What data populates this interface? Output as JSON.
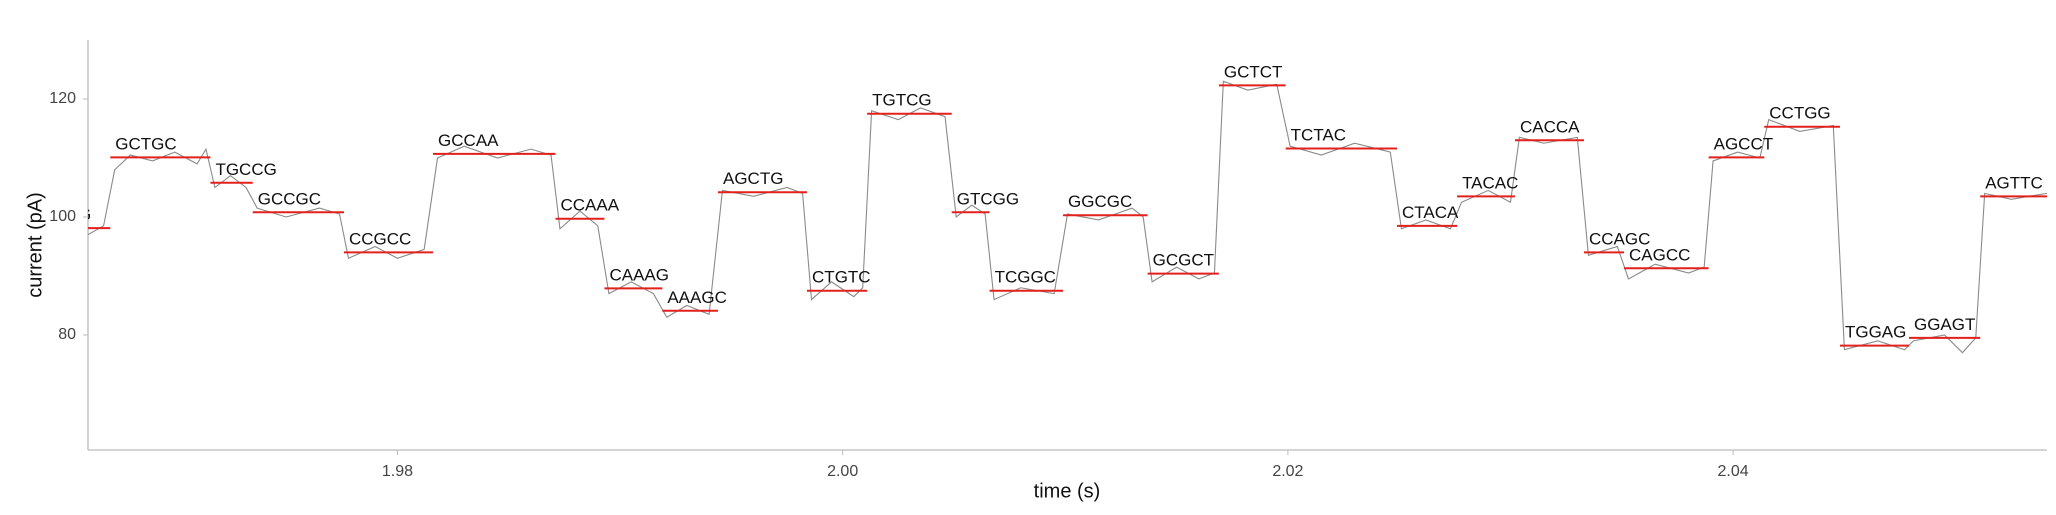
{
  "chart_data": {
    "type": "line",
    "xlabel": "time (s)",
    "ylabel": "current (pA)",
    "xlim": [
      1.9661,
      2.0541
    ],
    "ylim": [
      60.5,
      130
    ],
    "xticks": [
      1.98,
      {
        "value": 2,
        "label": "2.00"
      },
      2.02,
      {
        "value": 2.04,
        "label": "2.04"
      }
    ],
    "yticks": [
      80,
      100,
      120
    ],
    "series": [
      {
        "color": "#8a8a8a",
        "x": [
          1.9661,
          1.9668,
          1.9673,
          1.968,
          1.969,
          1.97,
          1.971,
          1.9714,
          1.9718,
          1.9725,
          1.9732,
          1.9737,
          1.975,
          1.9765,
          1.9774,
          1.9778,
          1.979,
          1.98,
          1.9812,
          1.9818,
          1.983,
          1.9845,
          1.986,
          1.9869,
          1.9873,
          1.9882,
          1.989,
          1.9895,
          1.9905,
          1.9915,
          1.9921,
          1.993,
          1.994,
          1.9946,
          1.996,
          1.9975,
          1.9982,
          1.9986,
          1.9995,
          2.0005,
          2.0009,
          2.0013,
          2.0025,
          2.0035,
          2.0046,
          2.0051,
          2.0058,
          2.0064,
          2.0068,
          2.008,
          2.0095,
          2.0101,
          2.0115,
          2.013,
          2.0135,
          2.0139,
          2.015,
          2.016,
          2.0167,
          2.0171,
          2.0182,
          2.0195,
          2.0201,
          2.0215,
          2.023,
          2.0246,
          2.0251,
          2.0262,
          2.0273,
          2.0278,
          2.029,
          2.03,
          2.0304,
          2.0315,
          2.033,
          2.0335,
          2.0348,
          2.0353,
          2.0365,
          2.038,
          2.0387,
          2.0391,
          2.0402,
          2.0412,
          2.0416,
          2.043,
          2.0445,
          2.045,
          2.0465,
          2.0477,
          2.0481,
          2.0495,
          2.0503,
          2.0509,
          2.0513,
          2.0525,
          2.0541
        ],
        "values": [
          97,
          98.5,
          108,
          110.5,
          109.5,
          111,
          109,
          111.5,
          105,
          107,
          105,
          101.5,
          100,
          101.5,
          100.5,
          93,
          95,
          93,
          94.5,
          110,
          112,
          110,
          111.5,
          110.5,
          98,
          101,
          98.5,
          87,
          89,
          87,
          83,
          85,
          83.5,
          104.5,
          103.5,
          105,
          104,
          86,
          89,
          86.5,
          88,
          118,
          116.5,
          118.5,
          117,
          100,
          102,
          100.5,
          86,
          88,
          87,
          100.5,
          99.5,
          101.5,
          100,
          89,
          91.5,
          89.5,
          90.5,
          123,
          121.5,
          122.5,
          112,
          110.5,
          112.5,
          111,
          98,
          99.5,
          98,
          102.5,
          104.5,
          102.5,
          113.5,
          112.5,
          113.5,
          93.5,
          95,
          89.5,
          92,
          90.5,
          91.5,
          109.5,
          111,
          110,
          116.5,
          114.5,
          115.5,
          77.5,
          79,
          77.5,
          79,
          80,
          77,
          79.5,
          104,
          103,
          104
        ]
      }
    ],
    "segment_color": "#e3201b",
    "segments": [
      {
        "label": "G",
        "start": 1.9661,
        "end": 1.9671,
        "level": 98.1
      },
      {
        "label": "GCTGC",
        "start": 1.9671,
        "end": 1.9716,
        "level": 110.1
      },
      {
        "label": "TGCCG",
        "start": 1.9716,
        "end": 1.9735,
        "level": 105.8
      },
      {
        "label": "GCCGC",
        "start": 1.9735,
        "end": 1.9776,
        "level": 100.8
      },
      {
        "label": "CCGCC",
        "start": 1.9776,
        "end": 1.9816,
        "level": 94
      },
      {
        "label": "GCCAA",
        "start": 1.9816,
        "end": 1.9871,
        "level": 110.7
      },
      {
        "label": "CCAAA",
        "start": 1.9871,
        "end": 1.9893,
        "level": 99.7
      },
      {
        "label": "CAAAG",
        "start": 1.9893,
        "end": 1.9919,
        "level": 87.9
      },
      {
        "label": "AAAGC",
        "start": 1.9919,
        "end": 1.9944,
        "level": 84.1
      },
      {
        "label": "AGCTG",
        "start": 1.9944,
        "end": 1.9984,
        "level": 104.2
      },
      {
        "label": "CTGTC",
        "start": 1.9984,
        "end": 2.0011,
        "level": 87.5
      },
      {
        "label": "TGTCG",
        "start": 2.0011,
        "end": 2.0049,
        "level": 117.5
      },
      {
        "label": "GTCGG",
        "start": 2.0049,
        "end": 2.0066,
        "level": 100.8
      },
      {
        "label": "TCGGC",
        "start": 2.0066,
        "end": 2.0099,
        "level": 87.5
      },
      {
        "label": "GGCGC",
        "start": 2.0099,
        "end": 2.0137,
        "level": 100.3
      },
      {
        "label": "GCGCT",
        "start": 2.0137,
        "end": 2.0169,
        "level": 90.4
      },
      {
        "label": "GCTCT",
        "start": 2.0169,
        "end": 2.0199,
        "level": 122.3
      },
      {
        "label": "TCTAC",
        "start": 2.0199,
        "end": 2.0249,
        "level": 111.6
      },
      {
        "label": "CTACA",
        "start": 2.0249,
        "end": 2.0276,
        "level": 98.5
      },
      {
        "label": "TACAC",
        "start": 2.0276,
        "end": 2.0302,
        "level": 103.5
      },
      {
        "label": "CACCA",
        "start": 2.0302,
        "end": 2.0333,
        "level": 113
      },
      {
        "label": "CCAGC",
        "start": 2.0333,
        "end": 2.0351,
        "level": 94
      },
      {
        "label": "CAGCC",
        "start": 2.0351,
        "end": 2.0389,
        "level": 91.3
      },
      {
        "label": "AGCCT",
        "start": 2.0389,
        "end": 2.0414,
        "level": 110.1
      },
      {
        "label": "CCTGG",
        "start": 2.0414,
        "end": 2.0448,
        "level": 115.3
      },
      {
        "label": "TGGAG",
        "start": 2.0448,
        "end": 2.0479,
        "level": 78.2
      },
      {
        "label": "GGAGT",
        "start": 2.0479,
        "end": 2.0511,
        "level": 79.5
      },
      {
        "label": "AGTTC",
        "start": 2.0511,
        "end": 2.0541,
        "level": 103.5
      }
    ]
  }
}
